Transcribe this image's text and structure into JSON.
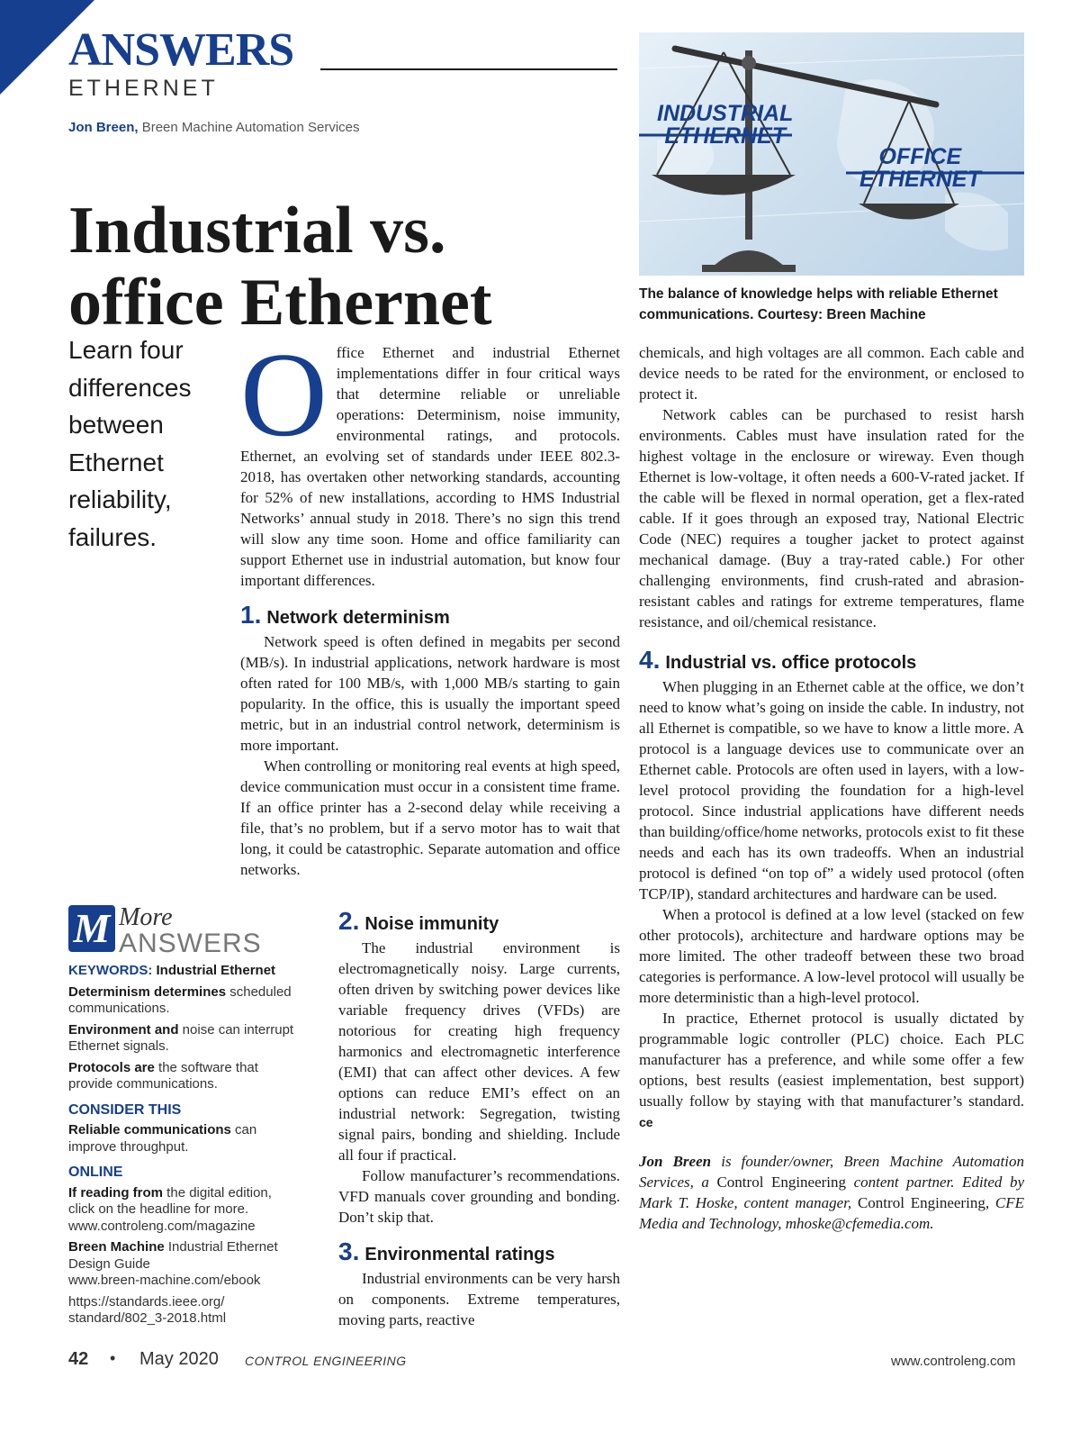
{
  "masthead": {
    "brand": "ANSWERS",
    "section": "ETHERNET"
  },
  "byline": {
    "author": "Jon Breen,",
    "company": " Breen Machine Automation Services"
  },
  "title": {
    "line1": "Industrial vs.",
    "line2": "office Ethernet"
  },
  "deck": "Learn four differences between Ethernet reliability, failures.",
  "image": {
    "label_left_1": "INDUSTRIAL",
    "label_left_2": "ETHERNET",
    "label_right_1": "OFFICE",
    "label_right_2": "ETHERNET",
    "caption": "The balance of knowledge helps with reliable Ethernet communications. Courtesy: Breen Machine"
  },
  "intro": {
    "dropcap": "O",
    "text": "ffice Ethernet and industrial Ethernet implementations differ in four critical ways that determine reliable or unreliable operations: Determinism, noise immunity, environmental ratings, and protocols. Ethernet, an evolving set of standards under IEEE 802.3-2018, has overtaken other networking standards, accounting for 52% of new installations, according to HMS Industrial Networks’ annual study in 2018. There’s no sign this trend will slow any time soon. Home and office familiarity can support Ethernet use in industrial automation, but know four important differences."
  },
  "sections": {
    "s1": {
      "num": "1.",
      "title": "Network determinism",
      "p1": "Network speed is often defined in megabits per second (MB/s). In industrial applications, network hardware is most often rated for 100 MB/s, with 1,000 MB/s starting to gain popularity. In the office, this is usually the important speed metric, but in an industrial control network, determinism is more important.",
      "p2": "When controlling or monitoring real events at high speed, device communication must occur in a consistent time frame. If an office printer has a 2-second delay while receiving a file, that’s no problem, but if a servo motor has to wait that long, it could be catastrophic. Separate automation and office networks."
    },
    "s2": {
      "num": "2.",
      "title": "Noise immunity",
      "p1": "The industrial environment is electromagnetically noisy. Large currents, often driven by switching power devices like variable frequency drives (VFDs) are notorious for creating high frequency harmonics and electromagnetic interference (EMI) that can affect other devices. A few options can reduce EMI’s effect on an industrial network: Segregation, twisting signal pairs, bonding and shielding. Include all four if practical.",
      "p2": "Follow manufacturer’s recommendations. VFD manuals cover grounding and bonding. Don’t skip that."
    },
    "s3": {
      "num": "3.",
      "title": "Environmental ratings",
      "p1": "Industrial environments can be very harsh on components. Extreme temperatures, moving parts, reactive",
      "p1_cont": "chemicals, and high voltages are all common. Each cable and device needs to be rated for the environment, or enclosed to protect it.",
      "p2": "Network cables can be purchased to resist harsh environments. Cables must have insulation rated for the highest voltage in the enclosure or wireway. Even though Ethernet is low-voltage, it often needs a 600-V-rated jacket. If the cable will be flexed in normal operation, get a flex-rated cable. If it goes through an exposed tray, National Electric Code (NEC) requires a tougher jacket to protect against mechanical damage. (Buy a tray-rated cable.) For other challenging environments, find crush-rated and abrasion-resistant cables and ratings for extreme temperatures, flame resistance, and oil/chemical resistance."
    },
    "s4": {
      "num": "4.",
      "title": "Industrial vs. office protocols",
      "p1": "When plugging in an Ethernet cable at the office, we don’t need to know what’s going on inside the cable. In industry, not all Ethernet is compatible, so we have to know a little more. A protocol is a language devices use to communicate over an Ethernet cable. Protocols are often used in layers, with a low-level protocol providing the foundation for a high-level protocol. Since industrial applications have different needs than building/office/home networks, protocols exist to fit these needs and each has its own tradeoffs. When an industrial protocol is defined “on top of” a widely used protocol (often TCP/IP), standard architectures and hardware can be used.",
      "p2": "When a protocol is defined at a low level (stacked on few other protocols), architecture and hardware options may be more limited. The other tradeoff between these two broad categories is performance. A low-level protocol will usually be more deterministic than a high-level protocol.",
      "p3": "In practice, Ethernet protocol is usually dictated by programmable logic controller (PLC) choice. Each PLC manufacturer has a preference, and while some offer a few options, best results (easiest implementation, best support) usually follow by staying with that manufacturer’s standard.",
      "endmark": "ce"
    }
  },
  "bio": {
    "name": "Jon Breen",
    "t1": " is founder/owner, Breen Machine Automation Services, a ",
    "pub1": "Control Engineering",
    "t2": " content partner. Edited by Mark T. Hoske, content manager, ",
    "pub2": "Control Engineering",
    "t3": ", CFE Media and Technology, mhoske@cfemedia.com."
  },
  "sidebar": {
    "logo_letter": "M",
    "logo_word1": "More",
    "logo_word2": "ANSWERS",
    "keywords_label": "KEYWORDS:",
    "keywords_value": " Industrial Ethernet",
    "kw1_bold": "Determinism determines",
    "kw1_rest": " scheduled communications.",
    "kw2_bold": "Environment and",
    "kw2_rest": " noise can interrupt Ethernet signals.",
    "kw3_bold": "Protocols are",
    "kw3_rest": " the software that provide communications.",
    "consider_label": "CONSIDER THIS",
    "consider_bold": "Reliable communications",
    "consider_rest": " can improve throughput.",
    "online_label": "ONLINE",
    "on1_bold": "If reading from",
    "on1_rest": " the digital edition, click on the headline for more.",
    "on1_url": "www.controleng.com/magazine",
    "on2_bold": "Breen Machine",
    "on2_rest": " Industrial Ethernet Design Guide",
    "on2_url": "www.breen-machine.com/ebook",
    "on3_url1": "https://standards.ieee.org/",
    "on3_url2": "standard/802_3-2018.html"
  },
  "footer": {
    "page": "42",
    "bullet": "•",
    "date": "May 2020",
    "magazine": "CONTROL ENGINEERING",
    "url": "www.controleng.com"
  }
}
